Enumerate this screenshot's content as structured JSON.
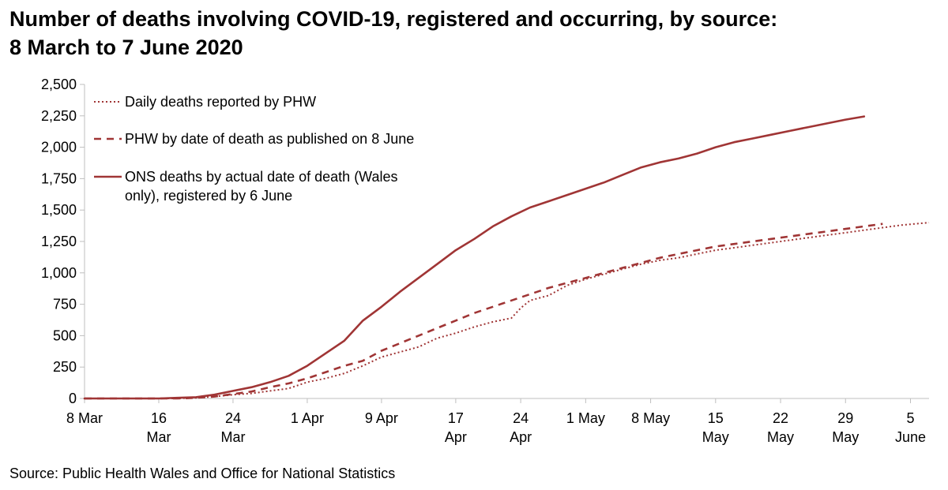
{
  "title_lines": [
    "Number of deaths involving COVID-19, registered and occurring, by source:",
    "8 March to 7 June 2020"
  ],
  "source": "Source: Public Health Wales and Office for National Statistics",
  "colors": {
    "series": "#a03535",
    "axis": "#bfbfbf"
  },
  "chart_data": {
    "type": "line",
    "title": "Number of deaths involving COVID-19, registered and occurring, by source: 8 March to 7 June 2020",
    "xlabel": "",
    "ylabel": "",
    "ylim": [
      0,
      2500
    ],
    "xlim": [
      0,
      91
    ],
    "grid": false,
    "legend_position": "top-left",
    "yticks": [
      0,
      250,
      500,
      750,
      1000,
      1250,
      1500,
      1750,
      2000,
      2250,
      2500
    ],
    "ytick_labels": [
      "0",
      "250",
      "500",
      "750",
      "1,000",
      "1,250",
      "1,500",
      "1,750",
      "2,000",
      "2,250",
      "2,500"
    ],
    "xticks": [
      {
        "day": 0,
        "lines": [
          "8 Mar"
        ]
      },
      {
        "day": 8,
        "lines": [
          "16",
          "Mar"
        ]
      },
      {
        "day": 16,
        "lines": [
          "24",
          "Mar"
        ]
      },
      {
        "day": 24,
        "lines": [
          "1 Apr"
        ]
      },
      {
        "day": 32,
        "lines": [
          "9 Apr"
        ]
      },
      {
        "day": 40,
        "lines": [
          "17",
          "Apr"
        ]
      },
      {
        "day": 47,
        "lines": [
          "24",
          "Apr"
        ]
      },
      {
        "day": 54,
        "lines": [
          "1 May"
        ]
      },
      {
        "day": 61,
        "lines": [
          "8 May"
        ]
      },
      {
        "day": 68,
        "lines": [
          "15",
          "May"
        ]
      },
      {
        "day": 75,
        "lines": [
          "22",
          "May"
        ]
      },
      {
        "day": 82,
        "lines": [
          "29",
          "May"
        ]
      },
      {
        "day": 89,
        "lines": [
          "5",
          "June"
        ]
      }
    ],
    "series": [
      {
        "name": "Daily deaths reported by PHW",
        "style": "dotted",
        "x": [
          0,
          4,
          8,
          10,
          12,
          14,
          16,
          18,
          20,
          22,
          24,
          26,
          28,
          30,
          32,
          34,
          36,
          38,
          40,
          42,
          44,
          46,
          47,
          48,
          50,
          52,
          54,
          56,
          58,
          60,
          62,
          64,
          66,
          68,
          70,
          72,
          74,
          76,
          78,
          80,
          82,
          84,
          86,
          88,
          91
        ],
        "y": [
          0,
          0,
          0,
          0,
          5,
          15,
          30,
          40,
          60,
          80,
          130,
          160,
          200,
          260,
          330,
          370,
          410,
          480,
          520,
          570,
          610,
          640,
          720,
          780,
          820,
          900,
          950,
          990,
          1030,
          1070,
          1100,
          1120,
          1150,
          1180,
          1200,
          1220,
          1240,
          1260,
          1280,
          1300,
          1320,
          1340,
          1360,
          1380,
          1400
        ]
      },
      {
        "name": "PHW by date of death as published on 8 June",
        "style": "dashed",
        "x": [
          0,
          4,
          8,
          10,
          12,
          14,
          16,
          18,
          20,
          22,
          24,
          26,
          28,
          30,
          32,
          34,
          36,
          38,
          40,
          42,
          44,
          46,
          48,
          50,
          52,
          54,
          56,
          58,
          60,
          62,
          64,
          66,
          68,
          70,
          72,
          74,
          76,
          78,
          80,
          82,
          84,
          86
        ],
        "y": [
          0,
          0,
          0,
          0,
          5,
          15,
          35,
          55,
          90,
          120,
          160,
          210,
          260,
          300,
          380,
          440,
          500,
          560,
          620,
          680,
          730,
          780,
          830,
          880,
          920,
          960,
          1000,
          1040,
          1080,
          1120,
          1150,
          1180,
          1210,
          1230,
          1250,
          1270,
          1290,
          1310,
          1330,
          1350,
          1370,
          1390
        ]
      },
      {
        "name": "ONS deaths by actual date of death (Wales only), registered by 6 June",
        "style": "solid",
        "x": [
          0,
          4,
          8,
          10,
          12,
          14,
          16,
          18,
          20,
          22,
          24,
          26,
          28,
          30,
          32,
          34,
          36,
          38,
          40,
          42,
          44,
          46,
          48,
          50,
          52,
          54,
          56,
          58,
          60,
          62,
          64,
          66,
          68,
          70,
          72,
          74,
          76,
          78,
          80,
          82,
          84
        ],
        "y": [
          0,
          0,
          0,
          5,
          10,
          30,
          60,
          90,
          130,
          180,
          260,
          360,
          460,
          620,
          730,
          850,
          960,
          1070,
          1180,
          1270,
          1370,
          1450,
          1520,
          1570,
          1620,
          1670,
          1720,
          1780,
          1840,
          1880,
          1910,
          1950,
          2000,
          2040,
          2070,
          2100,
          2130,
          2160,
          2190,
          2220,
          2245
        ]
      }
    ],
    "legend": [
      {
        "series": 0,
        "lines": [
          "Daily deaths reported by PHW"
        ]
      },
      {
        "series": 1,
        "lines": [
          "PHW by date of death as published on 8 June"
        ]
      },
      {
        "series": 2,
        "lines": [
          "ONS deaths by actual date of death (Wales",
          "only), registered by 6 June"
        ]
      }
    ]
  }
}
